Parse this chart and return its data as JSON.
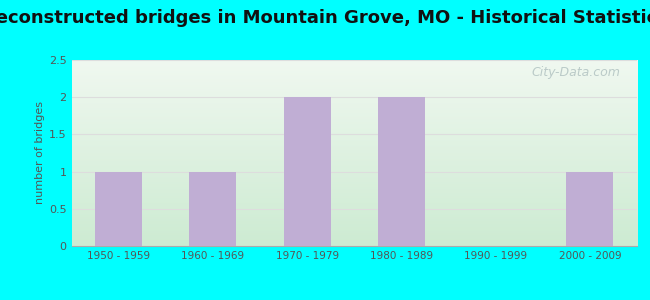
{
  "title": "Reconstructed bridges in Mountain Grove, MO - Historical Statistics",
  "categories": [
    "1950 - 1959",
    "1960 - 1969",
    "1970 - 1979",
    "1980 - 1989",
    "1990 - 1999",
    "2000 - 2009"
  ],
  "values": [
    1,
    1,
    2,
    2,
    0,
    1
  ],
  "bar_color": "#c0aed4",
  "ylabel": "number of bridges",
  "ylim": [
    0,
    2.5
  ],
  "yticks": [
    0,
    0.5,
    1,
    1.5,
    2,
    2.5
  ],
  "background_outer": "#00ffff",
  "background_top": "#f0f8f0",
  "background_bottom": "#d4edda",
  "title_fontsize": 13,
  "tick_label_color": "#555555",
  "ylabel_color": "#555555",
  "watermark": "City-Data.com",
  "grid_color": "#dddddd"
}
